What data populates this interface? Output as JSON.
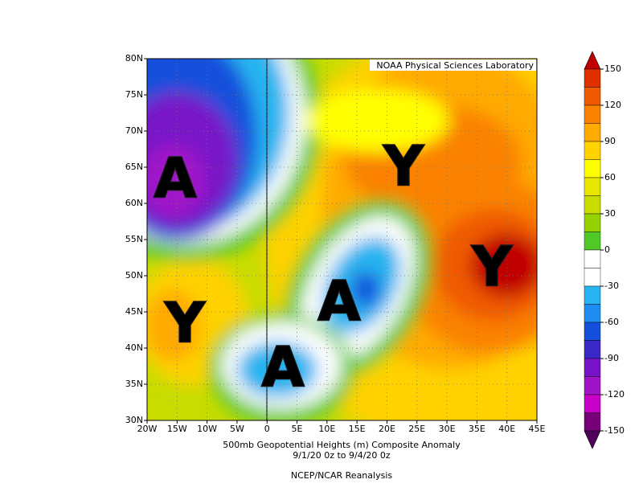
{
  "map": {
    "credit": "NOAA Physical Sciences Laboratory",
    "lat_labels": [
      "80N",
      "75N",
      "70N",
      "65N",
      "60N",
      "55N",
      "50N",
      "45N",
      "40N",
      "35N",
      "30N"
    ],
    "lon_labels": [
      "20W",
      "15W",
      "10W",
      "5W",
      "0",
      "5E",
      "10E",
      "15E",
      "20E",
      "25E",
      "30E",
      "35E",
      "40E",
      "45E"
    ],
    "markers": [
      "A",
      "Y",
      "Y",
      "Y",
      "A",
      "A"
    ],
    "title_lines": [
      "500mb Geopotential Heights (m)    Composite Anomaly",
      "9/1/20 0z  to 9/4/20 0z"
    ],
    "source": "NCEP/NCAR Reanalysis",
    "colorbar": {
      "levels": [
        150,
        120,
        90,
        60,
        30,
        0,
        -30,
        -60,
        -90,
        -120,
        -150
      ],
      "colors": [
        "#c00000",
        "#e03000",
        "#f05a00",
        "#fa8200",
        "#ffaa00",
        "#ffd200",
        "#ffff00",
        "#e6e600",
        "#c8dc00",
        "#96d200",
        "#50c828",
        "#ffffff",
        "#ffffff",
        "#28b4f0",
        "#1e8cf0",
        "#1450dc",
        "#3c28c8",
        "#7814c8",
        "#a014c8",
        "#c800c8",
        "#780078",
        "#50005a"
      ]
    }
  }
}
